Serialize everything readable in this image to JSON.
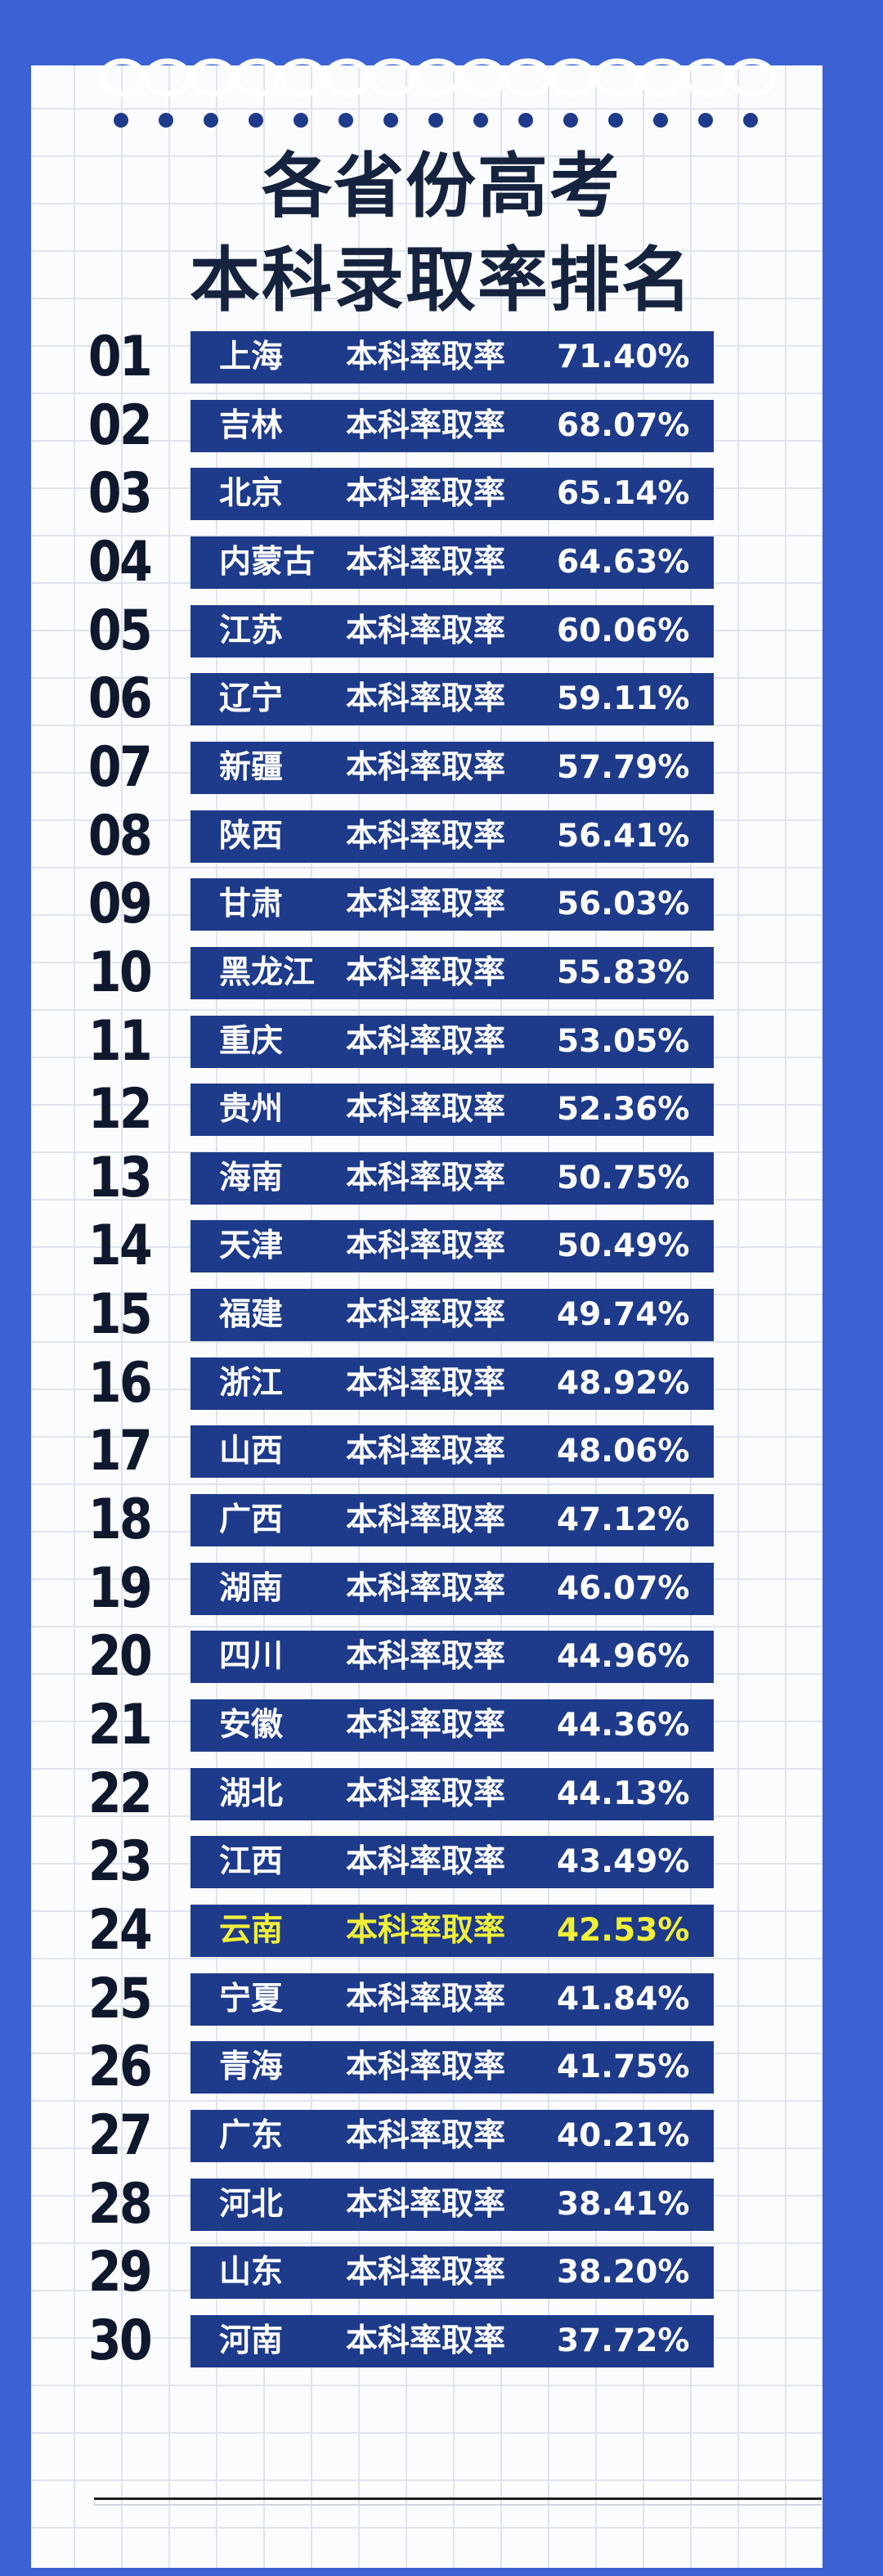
{
  "title": {
    "line1": "各省份高考",
    "line2": "本科录取率排名"
  },
  "rows": [
    {
      "rank": "01",
      "province": "上海",
      "label": "本科率取率",
      "rate": "71.40%"
    },
    {
      "rank": "02",
      "province": "吉林",
      "label": "本科率取率",
      "rate": "68.07%"
    },
    {
      "rank": "03",
      "province": "北京",
      "label": "本科率取率",
      "rate": "65.14%"
    },
    {
      "rank": "04",
      "province": "内蒙古",
      "label": "本科率取率",
      "rate": "64.63%"
    },
    {
      "rank": "05",
      "province": "江苏",
      "label": "本科率取率",
      "rate": "60.06%"
    },
    {
      "rank": "06",
      "province": "辽宁",
      "label": "本科率取率",
      "rate": "59.11%"
    },
    {
      "rank": "07",
      "province": "新疆",
      "label": "本科率取率",
      "rate": "57.79%"
    },
    {
      "rank": "08",
      "province": "陕西",
      "label": "本科率取率",
      "rate": "56.41%"
    },
    {
      "rank": "09",
      "province": "甘肃",
      "label": "本科率取率",
      "rate": "56.03%"
    },
    {
      "rank": "10",
      "province": "黑龙江",
      "label": "本科率取率",
      "rate": "55.83%"
    },
    {
      "rank": "11",
      "province": "重庆",
      "label": "本科率取率",
      "rate": "53.05%"
    },
    {
      "rank": "12",
      "province": "贵州",
      "label": "本科率取率",
      "rate": "52.36%"
    },
    {
      "rank": "13",
      "province": "海南",
      "label": "本科率取率",
      "rate": "50.75%"
    },
    {
      "rank": "14",
      "province": "天津",
      "label": "本科率取率",
      "rate": "50.49%"
    },
    {
      "rank": "15",
      "province": "福建",
      "label": "本科率取率",
      "rate": "49.74%"
    },
    {
      "rank": "16",
      "province": "浙江",
      "label": "本科率取率",
      "rate": "48.92%"
    },
    {
      "rank": "17",
      "province": "山西",
      "label": "本科率取率",
      "rate": "48.06%"
    },
    {
      "rank": "18",
      "province": "广西",
      "label": "本科率取率",
      "rate": "47.12%"
    },
    {
      "rank": "19",
      "province": "湖南",
      "label": "本科率取率",
      "rate": "46.07%"
    },
    {
      "rank": "20",
      "province": "四川",
      "label": "本科率取率",
      "rate": "44.96%"
    },
    {
      "rank": "21",
      "province": "安徽",
      "label": "本科率取率",
      "rate": "44.36%"
    },
    {
      "rank": "22",
      "province": "湖北",
      "label": "本科率取率",
      "rate": "44.13%"
    },
    {
      "rank": "23",
      "province": "江西",
      "label": "本科率取率",
      "rate": "43.49%"
    },
    {
      "rank": "24",
      "province": "云南",
      "label": "本科率取率",
      "rate": "42.53%"
    },
    {
      "rank": "25",
      "province": "宁夏",
      "label": "本科率取率",
      "rate": "41.84%"
    },
    {
      "rank": "26",
      "province": "青海",
      "label": "本科率取率",
      "rate": "41.75%"
    },
    {
      "rank": "27",
      "province": "广东",
      "label": "本科率取率",
      "rate": "40.21%"
    },
    {
      "rank": "28",
      "province": "河北",
      "label": "本科率取率",
      "rate": "38.41%"
    },
    {
      "rank": "29",
      "province": "山东",
      "label": "本科率取率",
      "rate": "38.20%"
    },
    {
      "rank": "30",
      "province": "河南",
      "label": "本科率取率",
      "rate": "37.72%"
    }
  ],
  "colors": {
    "background": "#3a62d4",
    "bar": "#1e3a8a",
    "bar_text": "#ffffff",
    "highlight_text": "#f0ef3a",
    "title": "#16233f"
  },
  "highlight_rank": "24"
}
